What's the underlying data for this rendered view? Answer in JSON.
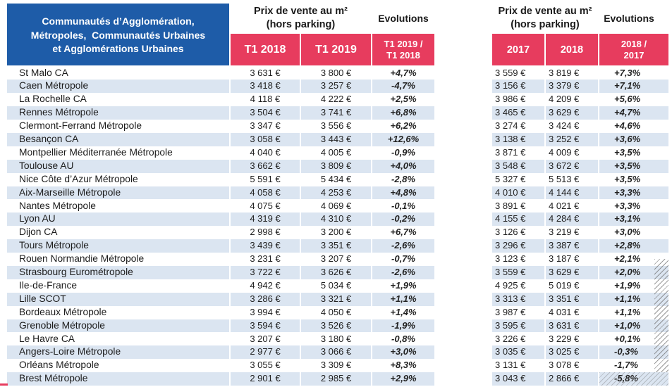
{
  "colors": {
    "header_blue": "#1E5CA8",
    "header_pink": "#E73C5E",
    "row_alt": "#DBE5F1",
    "text": "#1C1C1C"
  },
  "chart_data": {
    "type": "table",
    "row_header_title": [
      "Communautés d’Agglomération,",
      "Métropoles,  Communautés Urbaines",
      "et Agglomérations Urbaines"
    ],
    "column_groups": [
      {
        "price_header": [
          "Prix de vente au m²",
          "(hors parking)"
        ],
        "evolution_header": "Evolutions",
        "period_columns": [
          "T1 2018",
          "T1 2019"
        ],
        "evolution_column": [
          "T1 2019 /",
          "T1 2018"
        ]
      },
      {
        "price_header": [
          "Prix de vente au m²",
          "(hors parking)"
        ],
        "evolution_header": "Evolutions",
        "period_columns": [
          "2017",
          "2018"
        ],
        "evolution_column": [
          "2018 /",
          "2017"
        ]
      }
    ],
    "rows": [
      {
        "name": "St Malo CA",
        "values": [
          "3 631 €",
          "3 800 €",
          "+4,7%",
          "3 559 €",
          "3 819 €",
          "+7,3%"
        ]
      },
      {
        "name": "Caen Métropole",
        "values": [
          "3 418 €",
          "3 257 €",
          "-4,7%",
          "3 156 €",
          "3 379 €",
          "+7,1%"
        ]
      },
      {
        "name": "La Rochelle CA",
        "values": [
          "4 118 €",
          "4 222 €",
          "+2,5%",
          "3 986 €",
          "4 209 €",
          "+5,6%"
        ]
      },
      {
        "name": "Rennes Métropole",
        "values": [
          "3 504 €",
          "3 741 €",
          "+6,8%",
          "3 465 €",
          "3 629 €",
          "+4,7%"
        ]
      },
      {
        "name": "Clermont-Ferrand Métropole",
        "values": [
          "3 347 €",
          "3 556 €",
          "+6,2%",
          "3 274 €",
          "3 424 €",
          "+4,6%"
        ]
      },
      {
        "name": "Besançon CA",
        "values": [
          "3 058 €",
          "3 443 €",
          "+12,6%",
          "3 138 €",
          "3 252 €",
          "+3,6%"
        ]
      },
      {
        "name": "Montpellier Méditerranée Métropole",
        "values": [
          "4 040 €",
          "4 005 €",
          "-0,9%",
          "3 871 €",
          "4 009 €",
          "+3,5%"
        ]
      },
      {
        "name": "Toulouse AU",
        "values": [
          "3 662 €",
          "3 809 €",
          "+4,0%",
          "3 548 €",
          "3 672 €",
          "+3,5%"
        ]
      },
      {
        "name": "Nice Côte d’Azur Métropole",
        "values": [
          "5 591 €",
          "5 434 €",
          "-2,8%",
          "5 327 €",
          "5 513 €",
          "+3,5%"
        ]
      },
      {
        "name": "Aix-Marseille Métropole",
        "values": [
          "4 058 €",
          "4 253 €",
          "+4,8%",
          "4 010 €",
          "4 144 €",
          "+3,3%"
        ]
      },
      {
        "name": "Nantes Métropole",
        "values": [
          "4 075 €",
          "4 069 €",
          "-0,1%",
          "3 891 €",
          "4 021 €",
          "+3,3%"
        ]
      },
      {
        "name": "Lyon AU",
        "values": [
          "4 319 €",
          "4 310 €",
          "-0,2%",
          "4 155 €",
          "4 284 €",
          "+3,1%"
        ]
      },
      {
        "name": "Dijon CA",
        "values": [
          "2 998 €",
          "3 200 €",
          "+6,7%",
          "3 126 €",
          "3 219 €",
          "+3,0%"
        ]
      },
      {
        "name": "Tours Métropole",
        "values": [
          "3 439 €",
          "3 351 €",
          "-2,6%",
          "3 296 €",
          "3 387 €",
          "+2,8%"
        ]
      },
      {
        "name": "Rouen Normandie Métropole",
        "values": [
          "3 231 €",
          "3 207 €",
          "-0,7%",
          "3 123 €",
          "3 187 €",
          "+2,1%"
        ]
      },
      {
        "name": "Strasbourg Eurométropole",
        "values": [
          "3 722 €",
          "3 626 €",
          "-2,6%",
          "3 559 €",
          "3 629 €",
          "+2,0%"
        ]
      },
      {
        "name": "Ile-de-France",
        "values": [
          "4 942 €",
          "5 034 €",
          "+1,9%",
          "4 925 €",
          "5 019 €",
          "+1,9%"
        ]
      },
      {
        "name": "Lille SCOT",
        "values": [
          "3 286 €",
          "3 321 €",
          "+1,1%",
          "3 313 €",
          "3 351 €",
          "+1,1%"
        ]
      },
      {
        "name": "Bordeaux Métropole",
        "values": [
          "3 994 €",
          "4 050 €",
          "+1,4%",
          "3 987 €",
          "4 031 €",
          "+1,1%"
        ]
      },
      {
        "name": "Grenoble Métropole",
        "values": [
          "3 594 €",
          "3 526 €",
          "-1,9%",
          "3 595 €",
          "3 631 €",
          "+1,0%"
        ]
      },
      {
        "name": "Le Havre CA",
        "values": [
          "3 207 €",
          "3 180 €",
          "-0,8%",
          "3 226 €",
          "3 229 €",
          "+0,1%"
        ]
      },
      {
        "name": "Angers-Loire Métropole",
        "values": [
          "2 977 €",
          "3 066 €",
          "+3,0%",
          "3 035 €",
          "3 025 €",
          "-0,3%"
        ]
      },
      {
        "name": "Orléans Métropole",
        "values": [
          "3 055 €",
          "3 309 €",
          "+8,3%",
          "3 131 €",
          "3 078 €",
          "-1,7%"
        ]
      },
      {
        "name": "Brest Métropole",
        "values": [
          "2 901 €",
          "2 985 €",
          "+2,9%",
          "3 043 €",
          "2 866 €",
          "-5,8%"
        ]
      }
    ]
  }
}
